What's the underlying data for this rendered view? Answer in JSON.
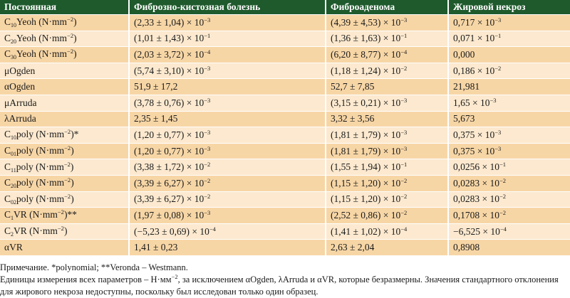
{
  "colors": {
    "header_bg": "#1e5a2c",
    "row_dark": "#f7d6a6",
    "row_light": "#fce9cf"
  },
  "table": {
    "headers": [
      "Постоянная",
      "Фиброзно-кистозная болезнь",
      "Фиброаденома",
      "Жировой некроз"
    ],
    "rows": [
      [
        [
          {
            "t": "C"
          },
          {
            "sub": "10"
          },
          {
            "t": "Yeoh (N·mm"
          },
          {
            "sup": "−2"
          },
          {
            "t": ")"
          }
        ],
        [
          {
            "t": "(2,33 ± 1,04) × 10"
          },
          {
            "sup": "−3"
          }
        ],
        [
          {
            "t": "(4,39 ± 4,53) × 10"
          },
          {
            "sup": "−3"
          }
        ],
        [
          {
            "t": "0,717 × 10"
          },
          {
            "sup": "−3"
          }
        ]
      ],
      [
        [
          {
            "t": "C"
          },
          {
            "sub": "20"
          },
          {
            "t": "Yeoh (N·mm"
          },
          {
            "sup": "−2"
          },
          {
            "t": ")"
          }
        ],
        [
          {
            "t": "(1,01 ± 1,43) × 10"
          },
          {
            "sup": "−1"
          }
        ],
        [
          {
            "t": "(1,36 ± 1,63) × 10"
          },
          {
            "sup": "−1"
          }
        ],
        [
          {
            "t": "0,071 × 10"
          },
          {
            "sup": "−1"
          }
        ]
      ],
      [
        [
          {
            "t": "C"
          },
          {
            "sub": "30"
          },
          {
            "t": "Yeoh (N·mm"
          },
          {
            "sup": "−2"
          },
          {
            "t": ")"
          }
        ],
        [
          {
            "t": "(2,03 ± 3,72) × 10"
          },
          {
            "sup": "−4"
          }
        ],
        [
          {
            "t": "(6,20 ± 8,77) × 10"
          },
          {
            "sup": "−4"
          }
        ],
        [
          {
            "t": "0,000"
          }
        ]
      ],
      [
        [
          {
            "t": "μOgden"
          }
        ],
        [
          {
            "t": "(5,74 ± 3,10) × 10"
          },
          {
            "sup": "−3"
          }
        ],
        [
          {
            "t": "(1,18 ± 1,24) × 10"
          },
          {
            "sup": "−2"
          }
        ],
        [
          {
            "t": "0,186 × 10"
          },
          {
            "sup": "−2"
          }
        ]
      ],
      [
        [
          {
            "t": "αOgden"
          }
        ],
        [
          {
            "t": "51,9 ± 17,2"
          }
        ],
        [
          {
            "t": "52,7 ± 7,85"
          }
        ],
        [
          {
            "t": "21,981"
          }
        ]
      ],
      [
        [
          {
            "t": "μArruda"
          }
        ],
        [
          {
            "t": "(3,78 ± 0,76) × 10"
          },
          {
            "sup": "−3"
          }
        ],
        [
          {
            "t": "(3,15 ± 0,21) × 10"
          },
          {
            "sup": "−3"
          }
        ],
        [
          {
            "t": "1,65 × 10"
          },
          {
            "sup": "−3"
          }
        ]
      ],
      [
        [
          {
            "t": "λArruda"
          }
        ],
        [
          {
            "t": "2,35 ± 1,45"
          }
        ],
        [
          {
            "t": "3,32 ± 3,56"
          }
        ],
        [
          {
            "t": "5,673"
          }
        ]
      ],
      [
        [
          {
            "t": "C"
          },
          {
            "sub": "10"
          },
          {
            "t": "poly (N·mm"
          },
          {
            "sup": "−2"
          },
          {
            "t": ")*"
          }
        ],
        [
          {
            "t": "(1,20 ± 0,77) × 10"
          },
          {
            "sup": "−3"
          }
        ],
        [
          {
            "t": "(1,81 ± 1,79) × 10"
          },
          {
            "sup": "−3"
          }
        ],
        [
          {
            "t": "0,375 × 10"
          },
          {
            "sup": "−3"
          }
        ]
      ],
      [
        [
          {
            "t": "C"
          },
          {
            "sub": "01"
          },
          {
            "t": "poly (N·mm"
          },
          {
            "sup": "−2"
          },
          {
            "t": ")"
          }
        ],
        [
          {
            "t": "(1,20 ± 0,77) × 10"
          },
          {
            "sup": "−3"
          }
        ],
        [
          {
            "t": "(1,81 ± 1,79) × 10"
          },
          {
            "sup": "−3"
          }
        ],
        [
          {
            "t": "0,375 × 10"
          },
          {
            "sup": "−3"
          }
        ]
      ],
      [
        [
          {
            "t": "C"
          },
          {
            "sub": "11"
          },
          {
            "t": "poly (N·mm"
          },
          {
            "sup": "−2"
          },
          {
            "t": ")"
          }
        ],
        [
          {
            "t": "(3,38 ± 1,72) × 10"
          },
          {
            "sup": "−2"
          }
        ],
        [
          {
            "t": "(1,55 ± 1,94) × 10"
          },
          {
            "sup": "−1"
          }
        ],
        [
          {
            "t": "0,0256 × 10"
          },
          {
            "sup": "−1"
          }
        ]
      ],
      [
        [
          {
            "t": "C"
          },
          {
            "sub": "20"
          },
          {
            "t": "poly (N·mm"
          },
          {
            "sup": "−2"
          },
          {
            "t": ")"
          }
        ],
        [
          {
            "t": "(3,39 ± 6,27) × 10"
          },
          {
            "sup": "−2"
          }
        ],
        [
          {
            "t": "(1,15 ± 1,20) × 10"
          },
          {
            "sup": "−2"
          }
        ],
        [
          {
            "t": "0,0283 × 10"
          },
          {
            "sup": "−2"
          }
        ]
      ],
      [
        [
          {
            "t": "C"
          },
          {
            "sub": "02"
          },
          {
            "t": "poly (N·mm"
          },
          {
            "sup": "−2"
          },
          {
            "t": ")"
          }
        ],
        [
          {
            "t": "(3,39 ± 6,27) × 10"
          },
          {
            "sup": "−2"
          }
        ],
        [
          {
            "t": "(1,15 ± 1,20) × 10"
          },
          {
            "sup": "−2"
          }
        ],
        [
          {
            "t": "0,0283 × 10"
          },
          {
            "sup": "−2"
          }
        ]
      ],
      [
        [
          {
            "t": "C"
          },
          {
            "sub": "1"
          },
          {
            "t": "VR (N·mm"
          },
          {
            "sup": "−2"
          },
          {
            "t": ")**"
          }
        ],
        [
          {
            "t": "(1,97 ± 0,08) × 10"
          },
          {
            "sup": "−3"
          }
        ],
        [
          {
            "t": "(2,52 ± 0,86) × 10"
          },
          {
            "sup": "−2"
          }
        ],
        [
          {
            "t": "0,1708 × 10"
          },
          {
            "sup": "−2"
          }
        ]
      ],
      [
        [
          {
            "t": "C"
          },
          {
            "sub": "2"
          },
          {
            "t": "VR (N·mm"
          },
          {
            "sup": "−2"
          },
          {
            "t": ")"
          }
        ],
        [
          {
            "t": "(−5,23 ± 0,69) × 10"
          },
          {
            "sup": "−4"
          }
        ],
        [
          {
            "t": "(1,41 ± 1,02) × 10"
          },
          {
            "sup": "−4"
          }
        ],
        [
          {
            "t": "−6,525 × 10"
          },
          {
            "sup": "−4"
          }
        ]
      ],
      [
        [
          {
            "t": "αVR"
          }
        ],
        [
          {
            "t": "1,41 ± 0,23"
          }
        ],
        [
          {
            "t": "2,63 ± 2,04"
          }
        ],
        [
          {
            "t": "0,8908"
          }
        ]
      ]
    ]
  },
  "notes": [
    [
      {
        "t": "Примечание. *polynomial; **Veronda – Westmann."
      }
    ],
    [
      {
        "t": "Единицы измерения всех параметров – Н·мм"
      },
      {
        "sup": "−2"
      },
      {
        "t": ", за исключением αOgden, λArruda и αVR, которые безразмерны. Значения стандартного отклонения для жирового некроза недоступны, поскольку был исследован только один образец."
      }
    ]
  ]
}
